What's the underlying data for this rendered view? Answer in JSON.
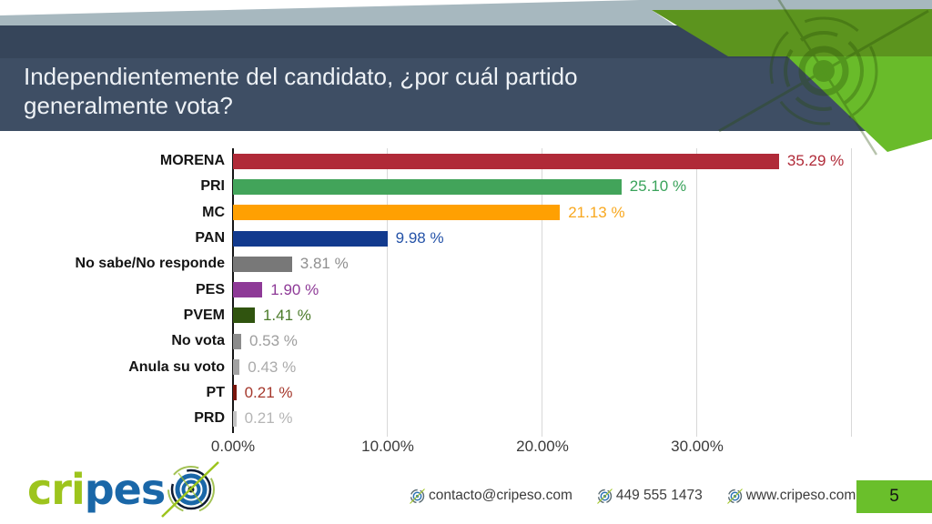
{
  "slide": {
    "title": "Independientemente del candidato, ¿por cuál partido generalmente vota?",
    "page_number": "5",
    "theme": {
      "header_bg": "#3e4e64",
      "header_top_bg": "#36455a",
      "band_gray": "#a7b8bf",
      "green_dark": "#5c941e",
      "green_bright": "#69bb2a",
      "title_color": "#eef2f6",
      "page_box_bg": "#6abf2b"
    }
  },
  "chart_data": {
    "type": "bar",
    "orientation": "horizontal",
    "title": "Independientemente del candidato, ¿por cuál partido generalmente vota?",
    "xlabel": "",
    "ylabel": "",
    "xlim": [
      0,
      40
    ],
    "grid": true,
    "grid_step": 10,
    "x_ticks": [
      {
        "value": 0,
        "label": "0.00%"
      },
      {
        "value": 10,
        "label": "10.00%"
      },
      {
        "value": 20,
        "label": "20.00%"
      },
      {
        "value": 30,
        "label": "30.00%"
      }
    ],
    "categories": [
      "MORENA",
      "PRI",
      "MC",
      "PAN",
      "No sabe/No responde",
      "PES",
      "PVEM",
      "No vota",
      "Anula su voto",
      "PT",
      "PRD"
    ],
    "values": [
      35.29,
      25.1,
      21.13,
      9.98,
      3.81,
      1.9,
      1.41,
      0.53,
      0.43,
      0.21,
      0.21
    ],
    "series": [
      {
        "label": "MORENA",
        "value": 35.29,
        "display": "35.29 %",
        "bar_color": "#b02a38",
        "text_color": "#b02a38"
      },
      {
        "label": "PRI",
        "value": 25.1,
        "display": "25.10 %",
        "bar_color": "#42a45a",
        "text_color": "#3aa35b"
      },
      {
        "label": "MC",
        "value": 21.13,
        "display": "21.13 %",
        "bar_color": "#ffa002",
        "text_color": "#f8a81f"
      },
      {
        "label": "PAN",
        "value": 9.98,
        "display": "9.98 %",
        "bar_color": "#123a8e",
        "text_color": "#2553a8"
      },
      {
        "label": "No sabe/No responde",
        "value": 3.81,
        "display": "3.81 %",
        "bar_color": "#787878",
        "text_color": "#8f8f8f"
      },
      {
        "label": "PES",
        "value": 1.9,
        "display": "1.90 %",
        "bar_color": "#8e3a97",
        "text_color": "#8e3a97"
      },
      {
        "label": "PVEM",
        "value": 1.41,
        "display": "1.41 %",
        "bar_color": "#30540f",
        "text_color": "#4a7a28"
      },
      {
        "label": "No vota",
        "value": 0.53,
        "display": "0.53 %",
        "bar_color": "#8c8c8c",
        "text_color": "#9e9e9e"
      },
      {
        "label": "Anula su voto",
        "value": 0.43,
        "display": "0.43 %",
        "bar_color": "#a2a2a2",
        "text_color": "#ababab"
      },
      {
        "label": "PT",
        "value": 0.21,
        "display": "0.21 %",
        "bar_color": "#7a150c",
        "text_color": "#a5382c"
      },
      {
        "label": "PRD",
        "value": 0.21,
        "display": "0.21 %",
        "bar_color": "#c3c3c3",
        "text_color": "#b5b5b5"
      }
    ]
  },
  "footer": {
    "logo": {
      "part1": "cri",
      "part2": "pes",
      "part1_color": "#9dc41d",
      "part2_color": "#1a67a8"
    },
    "contacts": [
      {
        "icon": "target-bullet-icon",
        "text": "contacto@cripeso.com"
      },
      {
        "icon": "target-bullet-icon",
        "text": "449 555 1473"
      },
      {
        "icon": "target-bullet-icon",
        "text": "www.cripeso.com"
      }
    ]
  }
}
